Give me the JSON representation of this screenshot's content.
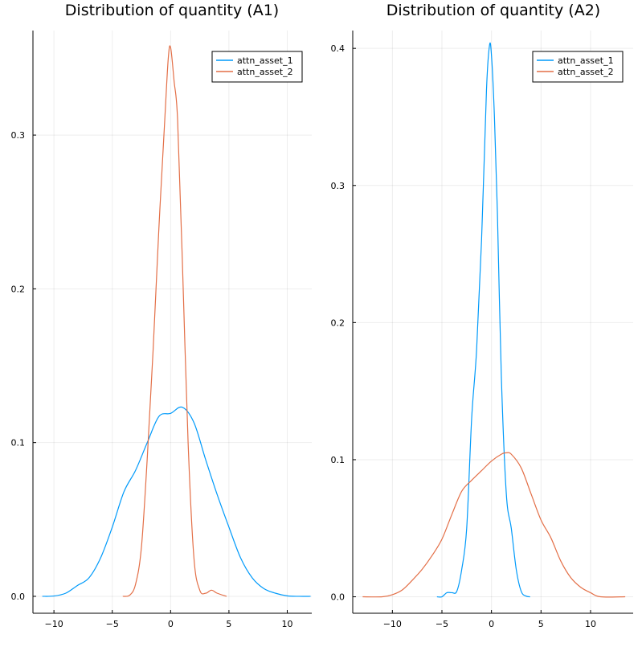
{
  "chart_data": [
    {
      "type": "line",
      "title": "Distribution of quantity (A1)",
      "xlim": [
        -11.8,
        12.1
      ],
      "ylim": [
        -0.011,
        0.368
      ],
      "xticks": [
        -10,
        -5,
        0,
        5,
        10
      ],
      "yticks": [
        0.0,
        0.1,
        0.2,
        0.3
      ],
      "xtick_labels": [
        "−10",
        "−5",
        "0",
        "5",
        "10"
      ],
      "ytick_labels": [
        "0.0",
        "0.1",
        "0.2",
        "0.3"
      ],
      "grid": true,
      "legend_position": "top-right",
      "series": [
        {
          "name": "attn_asset_1",
          "color": "#009AFA",
          "points": [
            [
              -11.0,
              0.0
            ],
            [
              -10.0,
              0.0002
            ],
            [
              -9.0,
              0.002
            ],
            [
              -8.0,
              0.007
            ],
            [
              -7.0,
              0.012
            ],
            [
              -6.0,
              0.025
            ],
            [
              -5.0,
              0.045
            ],
            [
              -4.0,
              0.068
            ],
            [
              -3.0,
              0.082
            ],
            [
              -2.0,
              0.1
            ],
            [
              -1.0,
              0.117
            ],
            [
              0.0,
              0.119
            ],
            [
              1.0,
              0.123
            ],
            [
              2.0,
              0.113
            ],
            [
              3.0,
              0.089
            ],
            [
              4.0,
              0.066
            ],
            [
              5.0,
              0.045
            ],
            [
              6.0,
              0.025
            ],
            [
              7.0,
              0.012
            ],
            [
              8.0,
              0.005
            ],
            [
              9.0,
              0.002
            ],
            [
              10.0,
              0.0003
            ],
            [
              11.0,
              0.0
            ],
            [
              12.0,
              0.0
            ]
          ]
        },
        {
          "name": "attn_asset_2",
          "color": "#E36F47",
          "points": [
            [
              -4.1,
              0.0
            ],
            [
              -3.5,
              0.0008
            ],
            [
              -3.0,
              0.008
            ],
            [
              -2.5,
              0.032
            ],
            [
              -2.0,
              0.09
            ],
            [
              -1.5,
              0.16
            ],
            [
              -1.0,
              0.24
            ],
            [
              -0.5,
              0.31
            ],
            [
              -0.2,
              0.35
            ],
            [
              0.0,
              0.357
            ],
            [
              0.3,
              0.335
            ],
            [
              0.6,
              0.31
            ],
            [
              1.0,
              0.22
            ],
            [
              1.5,
              0.1
            ],
            [
              2.0,
              0.025
            ],
            [
              2.5,
              0.004
            ],
            [
              3.0,
              0.002
            ],
            [
              3.5,
              0.004
            ],
            [
              4.0,
              0.002
            ],
            [
              4.8,
              0.0
            ]
          ]
        }
      ]
    },
    {
      "type": "line",
      "title": "Distribution of quantity (A2)",
      "xlim": [
        -14.0,
        14.3
      ],
      "ylim": [
        -0.012,
        0.413
      ],
      "xticks": [
        -10,
        -5,
        0,
        5,
        10
      ],
      "yticks": [
        0.0,
        0.1,
        0.2,
        0.3,
        0.4
      ],
      "xtick_labels": [
        "−10",
        "−5",
        "0",
        "5",
        "10"
      ],
      "ytick_labels": [
        "0.0",
        "0.1",
        "0.2",
        "0.3",
        "0.4"
      ],
      "grid": true,
      "legend_position": "top-right",
      "series": [
        {
          "name": "attn_asset_1",
          "color": "#009AFA",
          "points": [
            [
              -5.5,
              0.0
            ],
            [
              -5.0,
              0.0
            ],
            [
              -4.5,
              0.003
            ],
            [
              -4.0,
              0.003
            ],
            [
              -3.5,
              0.004
            ],
            [
              -3.0,
              0.02
            ],
            [
              -2.5,
              0.05
            ],
            [
              -2.0,
              0.13
            ],
            [
              -1.5,
              0.18
            ],
            [
              -1.0,
              0.26
            ],
            [
              -0.5,
              0.37
            ],
            [
              -0.2,
              0.402
            ],
            [
              0.0,
              0.395
            ],
            [
              0.3,
              0.35
            ],
            [
              0.6,
              0.28
            ],
            [
              1.0,
              0.16
            ],
            [
              1.5,
              0.075
            ],
            [
              2.0,
              0.05
            ],
            [
              2.5,
              0.02
            ],
            [
              3.0,
              0.004
            ],
            [
              3.5,
              0.0005
            ],
            [
              3.9,
              0.0
            ]
          ]
        },
        {
          "name": "attn_asset_2",
          "color": "#E36F47",
          "points": [
            [
              -13.0,
              0.0
            ],
            [
              -11.0,
              0.0
            ],
            [
              -10.0,
              0.0015
            ],
            [
              -9.0,
              0.005
            ],
            [
              -8.0,
              0.012
            ],
            [
              -7.0,
              0.02
            ],
            [
              -6.0,
              0.03
            ],
            [
              -5.0,
              0.042
            ],
            [
              -4.0,
              0.06
            ],
            [
              -3.0,
              0.077
            ],
            [
              -2.0,
              0.085
            ],
            [
              -1.0,
              0.092
            ],
            [
              0.0,
              0.099
            ],
            [
              1.0,
              0.104
            ],
            [
              1.5,
              0.105
            ],
            [
              2.0,
              0.104
            ],
            [
              3.0,
              0.094
            ],
            [
              4.0,
              0.075
            ],
            [
              5.0,
              0.056
            ],
            [
              6.0,
              0.043
            ],
            [
              7.0,
              0.026
            ],
            [
              8.0,
              0.014
            ],
            [
              9.0,
              0.007
            ],
            [
              10.0,
              0.003
            ],
            [
              11.0,
              0.0
            ],
            [
              13.5,
              0.0
            ]
          ]
        }
      ]
    }
  ]
}
